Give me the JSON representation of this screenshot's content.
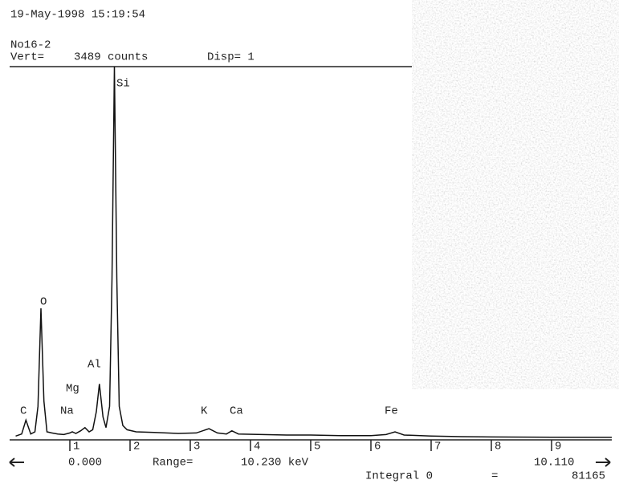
{
  "chart_data": {
    "type": "line",
    "timestamp": "19-May-1998 15:19:54",
    "sample": "No16-2",
    "vert_label": "Vert=",
    "vert_value": "3489 counts",
    "disp": "Disp= 1",
    "start_label": "0.000",
    "range_label": "Range=",
    "range_value": "10.230 keV",
    "end_label": "10.110",
    "integral_label": "Integral 0",
    "integral_eq": "=",
    "integral_value": "81165",
    "peak_labels": [
      "C",
      "O",
      "Na",
      "Mg",
      "Al",
      "Si",
      "K",
      "Ca",
      "Fe"
    ],
    "xlim": [
      0,
      10
    ],
    "ylim": [
      0,
      3489
    ],
    "xticks": [
      1,
      2,
      3,
      4,
      5,
      6,
      7,
      8,
      9
    ],
    "color": "#111111",
    "x": [
      0.1,
      0.2,
      0.27,
      0.35,
      0.42,
      0.47,
      0.52,
      0.57,
      0.62,
      0.7,
      0.8,
      0.9,
      1.0,
      1.04,
      1.1,
      1.18,
      1.25,
      1.32,
      1.38,
      1.44,
      1.49,
      1.55,
      1.6,
      1.66,
      1.7,
      1.74,
      1.78,
      1.82,
      1.88,
      1.95,
      2.1,
      2.4,
      2.8,
      3.1,
      3.31,
      3.45,
      3.6,
      3.69,
      3.8,
      4.2,
      4.6,
      5.0,
      5.5,
      6.0,
      6.25,
      6.4,
      6.55,
      7.0,
      7.5,
      8.0,
      9.0,
      10.0
    ],
    "values": [
      20,
      40,
      170,
      40,
      60,
      300,
      1220,
      350,
      60,
      50,
      40,
      35,
      50,
      60,
      45,
      70,
      100,
      60,
      80,
      250,
      510,
      200,
      100,
      300,
      1500,
      3489,
      1500,
      300,
      120,
      80,
      60,
      55,
      45,
      50,
      90,
      50,
      40,
      70,
      40,
      35,
      30,
      30,
      25,
      25,
      35,
      60,
      30,
      20,
      15,
      12,
      10,
      8
    ]
  }
}
